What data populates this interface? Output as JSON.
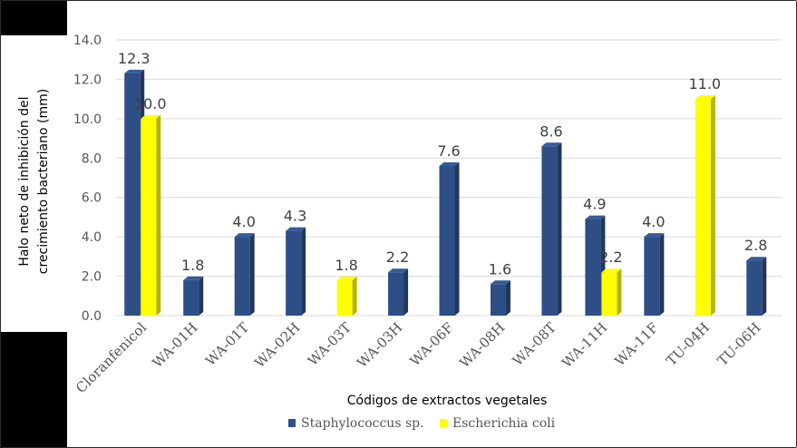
{
  "chart_data": {
    "type": "bar",
    "title": "",
    "xlabel": "Códigos de extractos vegetales",
    "ylabel_line1": "Halo neto de inhibición del",
    "ylabel_line2": "crecimiento bacteriano (mm)",
    "ylim": [
      0,
      14
    ],
    "yticks": [
      "0.0",
      "2.0",
      "4.0",
      "6.0",
      "8.0",
      "10.0",
      "12.0",
      "14.0"
    ],
    "grid": true,
    "legend_position": "bottom",
    "categories": [
      "Cloranfenicol",
      "WA-01H",
      "WA-01T",
      "WA-02H",
      "WA-03T",
      "WA-03H",
      "WA-06F",
      "WA-08H",
      "WA-08T",
      "WA-11H",
      "WA-11F",
      "TU-04H",
      "TU-06H"
    ],
    "series": [
      {
        "name": "Staphylococcus sp.",
        "color": "#2E4F86",
        "values": [
          12.3,
          1.8,
          4.0,
          4.3,
          null,
          2.2,
          7.6,
          1.6,
          8.6,
          4.9,
          4.0,
          null,
          2.8
        ],
        "labels": [
          "12.3",
          "1.8",
          "4.0",
          "4.3",
          null,
          "2.2",
          "7.6",
          "1.6",
          "8.6",
          "4.9",
          "4.0",
          null,
          "2.8"
        ]
      },
      {
        "name": "Escherichia coli",
        "color": "#FFFF00",
        "values": [
          10.0,
          null,
          null,
          null,
          1.8,
          null,
          null,
          null,
          null,
          2.2,
          null,
          11.0,
          null
        ],
        "labels": [
          "10.0",
          null,
          null,
          null,
          "1.8",
          null,
          null,
          null,
          null,
          "2.2",
          null,
          "11.0",
          null
        ]
      }
    ]
  }
}
